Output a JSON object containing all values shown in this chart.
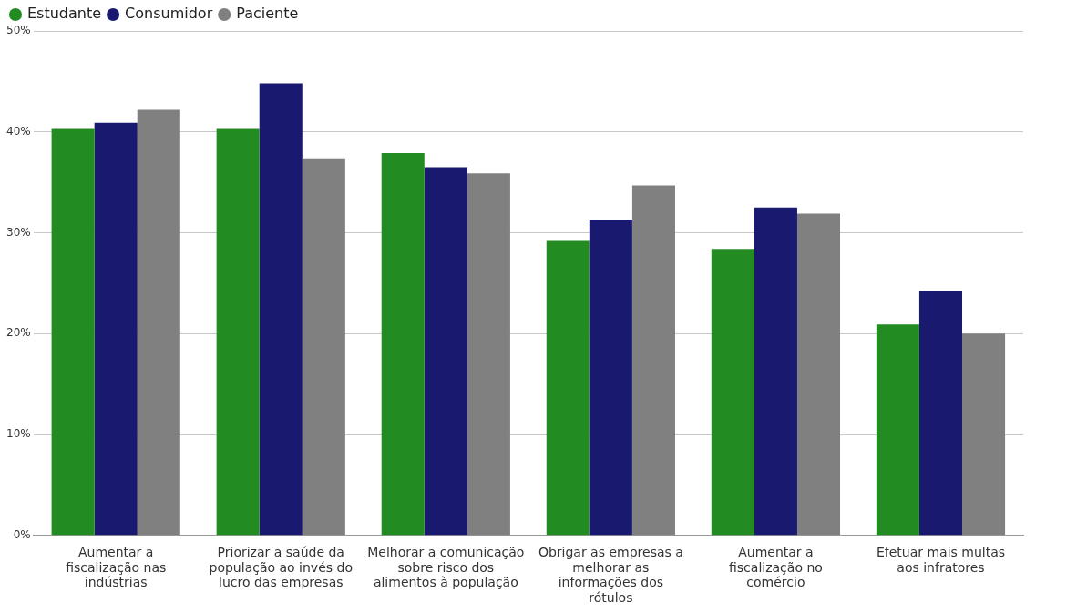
{
  "chart_data": {
    "type": "bar",
    "categories": [
      "Aumentar a fiscalização nas indústrias",
      "Priorizar a saúde da população ao invés do lucro das empresas",
      "Melhorar a comunicação sobre risco dos alimentos à população",
      "Obrigar as empresas a melhorar as informações dos rótulos",
      "Aumentar a fiscalização no comércio",
      "Efetuar mais multas aos infratores"
    ],
    "series": [
      {
        "name": "Estudante",
        "color": "#228b22",
        "values": [
          40.3,
          40.3,
          37.9,
          29.2,
          28.4,
          20.9
        ]
      },
      {
        "name": "Consumidor",
        "color": "#191970",
        "values": [
          40.9,
          44.8,
          36.5,
          31.3,
          32.5,
          24.2
        ]
      },
      {
        "name": "Paciente",
        "color": "#808080",
        "values": [
          42.2,
          37.3,
          35.9,
          34.7,
          31.9,
          20.0
        ]
      }
    ],
    "ylim": [
      0,
      50
    ],
    "yticks": [
      {
        "value": 0,
        "label": "0%"
      },
      {
        "value": 10,
        "label": "10%"
      },
      {
        "value": 20,
        "label": "20%"
      },
      {
        "value": 30,
        "label": "30%"
      },
      {
        "value": 40,
        "label": "40%"
      },
      {
        "value": 50,
        "label": "50%"
      }
    ],
    "grid": "y",
    "legend": "top left"
  }
}
